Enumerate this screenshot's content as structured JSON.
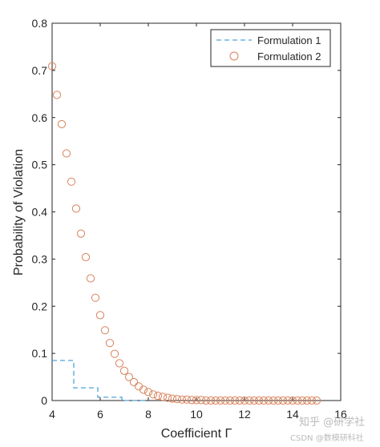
{
  "chart_data": {
    "type": "scatter",
    "title": "",
    "xlabel": "Coefficient Γ",
    "ylabel": "Probability of Violation",
    "xlim": [
      4,
      16
    ],
    "ylim": [
      0,
      0.8
    ],
    "xticks": [
      "4",
      "6",
      "8",
      "10",
      "12",
      "14",
      "16"
    ],
    "yticks": [
      "0",
      "0.1",
      "0.2",
      "0.3",
      "0.4",
      "0.5",
      "0.6",
      "0.7",
      "0.8"
    ],
    "legend_position": "top-right",
    "grid": false,
    "series": [
      {
        "name": "Formulation 1",
        "style": "dashed-line",
        "color": "#4DA3D9",
        "x": [
          4.0,
          4.9,
          4.9,
          5.9,
          5.9,
          6.9,
          6.9,
          8.0
        ],
        "y": [
          0.085,
          0.085,
          0.027,
          0.027,
          0.007,
          0.007,
          0.0,
          0.0
        ]
      },
      {
        "name": "Formulation 2",
        "style": "circle-markers",
        "color": "#D9825A",
        "x": [
          4.0,
          4.2,
          4.4,
          4.6,
          4.8,
          5.0,
          5.2,
          5.4,
          5.6,
          5.8,
          6.0,
          6.2,
          6.4,
          6.6,
          6.8,
          7.0,
          7.2,
          7.4,
          7.6,
          7.8,
          8.0,
          8.2,
          8.4,
          8.6,
          8.8,
          9.0,
          9.2,
          9.4,
          9.6,
          9.8,
          10.0,
          10.2,
          10.4,
          10.6,
          10.8,
          11.0,
          11.2,
          11.4,
          11.6,
          11.8,
          12.0,
          12.2,
          12.4,
          12.6,
          12.8,
          13.0,
          13.2,
          13.4,
          13.6,
          13.8,
          14.0,
          14.2,
          14.4,
          14.6,
          14.8,
          15.0
        ],
        "y": [
          0.709,
          0.648,
          0.586,
          0.524,
          0.464,
          0.407,
          0.354,
          0.304,
          0.259,
          0.218,
          0.181,
          0.149,
          0.122,
          0.099,
          0.079,
          0.063,
          0.05,
          0.039,
          0.03,
          0.023,
          0.018,
          0.013,
          0.01,
          0.008,
          0.006,
          0.004,
          0.003,
          0.002,
          0.002,
          0.001,
          0.001,
          0.001,
          0.0,
          0.0,
          0.0,
          0.0,
          0.0,
          0.0,
          0.0,
          0.0,
          0.0,
          0.0,
          0.0,
          0.0,
          0.0,
          0.0,
          0.0,
          0.0,
          0.0,
          0.0,
          0.0,
          0.0,
          0.0,
          0.0,
          0.0,
          0.0
        ]
      }
    ]
  },
  "watermark": {
    "line1": "知乎 @研学社",
    "line2": "CSDN @数模研科社"
  }
}
